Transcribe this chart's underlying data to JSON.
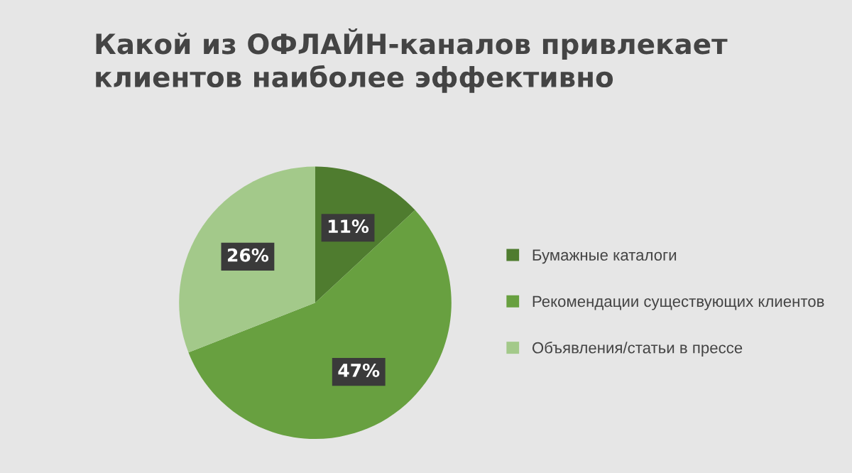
{
  "chart_data": {
    "type": "pie",
    "title": "Какой из ОФЛАЙН-каналов привлекает\nклиентов наиболее эффективно",
    "categories": [
      "Бумажные каталоги",
      "Рекомендации существующих клиентов",
      "Объявления/статьи в прессе"
    ],
    "values": [
      11,
      47,
      26
    ],
    "colors": [
      "#4f7c2f",
      "#68a040",
      "#a3c98a"
    ],
    "value_labels": [
      "11%",
      "47%",
      "26%"
    ],
    "legend": "right"
  }
}
